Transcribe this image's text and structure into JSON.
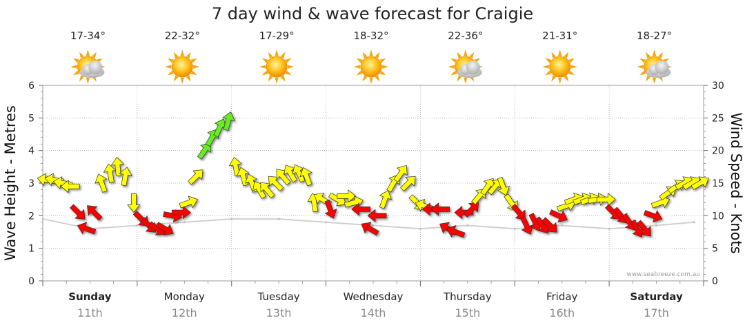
{
  "chart_data": {
    "type": "line",
    "title": "7 day wind & wave forecast for Craigie",
    "ylabel_left": "Wave Height - Metres",
    "ylabel_right": "Wind Speed - Knots",
    "ylim_left": [
      0,
      6
    ],
    "ylim_right": [
      0,
      30
    ],
    "yticks_left": [
      "0",
      "1",
      "2",
      "3",
      "4",
      "5",
      "6"
    ],
    "yticks_right": [
      "0",
      "5",
      "10",
      "15",
      "20",
      "25",
      "30"
    ],
    "grid": true,
    "credit": "www.seabreeze.com.au",
    "days": [
      {
        "name": "Sunday",
        "date": "11th",
        "temp": "17-34°",
        "weather": "partly-cloudy-icon",
        "bold": true
      },
      {
        "name": "Monday",
        "date": "12th",
        "temp": "22-32°",
        "weather": "sunny-icon",
        "bold": false
      },
      {
        "name": "Tuesday",
        "date": "13th",
        "temp": "17-29°",
        "weather": "sunny-icon",
        "bold": false
      },
      {
        "name": "Wednesday",
        "date": "14th",
        "temp": "18-32°",
        "weather": "sunny-icon",
        "bold": false
      },
      {
        "name": "Thursday",
        "date": "15th",
        "temp": "22-36°",
        "weather": "partly-cloudy-icon",
        "bold": false
      },
      {
        "name": "Friday",
        "date": "16th",
        "temp": "21-31°",
        "weather": "sunny-icon",
        "bold": false
      },
      {
        "name": "Saturday",
        "date": "17th",
        "temp": "18-27°",
        "weather": "partly-cloudy-icon",
        "bold": true
      }
    ],
    "colors": {
      "light": "#ffff00",
      "moderate": "#66ee22",
      "strong": "#ff0000",
      "outline": "#333333"
    },
    "series": [
      {
        "name": "Wind",
        "unit": "knots",
        "time_days": [
          0.0,
          0.08,
          0.17,
          0.25,
          0.33,
          0.42,
          0.5,
          0.58,
          0.67,
          0.75,
          0.83,
          0.92,
          1.0,
          1.08,
          1.17,
          1.25,
          1.33,
          1.42,
          1.5,
          1.58,
          1.67,
          1.75,
          1.83,
          1.92,
          2.0,
          2.08,
          2.17,
          2.25,
          2.33,
          2.42,
          2.5,
          2.58,
          2.67,
          2.75,
          2.83,
          2.92,
          3.0,
          3.08,
          3.17,
          3.25,
          3.33,
          3.42,
          3.5,
          3.58,
          3.67,
          3.75,
          3.83,
          3.92,
          4.0,
          4.08,
          4.17,
          4.25,
          4.33,
          4.42,
          4.5,
          4.58,
          4.67,
          4.75,
          4.83,
          4.92,
          5.0,
          5.08,
          5.17,
          5.25,
          5.33,
          5.42,
          5.5,
          5.58,
          5.67,
          5.75,
          5.83,
          5.92,
          6.0,
          6.08,
          6.17,
          6.25,
          6.33,
          6.42,
          6.5,
          6.58,
          6.67,
          6.75,
          6.83,
          6.92
        ],
        "speed_knots": [
          15.5,
          15.5,
          15,
          14.5,
          10.5,
          8,
          10.5,
          15,
          16.5,
          17.5,
          16,
          12,
          9.5,
          8.5,
          8,
          8,
          10,
          10.5,
          12,
          16,
          20,
          22,
          23.5,
          24.5,
          17.5,
          16,
          15,
          14,
          14,
          15,
          16,
          16.5,
          16.5,
          16,
          12,
          12.5,
          11,
          12.5,
          13,
          12,
          11,
          8,
          10,
          12.5,
          15,
          16.5,
          15,
          12,
          11.5,
          11,
          11,
          8,
          7.5,
          10.5,
          11,
          13,
          14.5,
          14.5,
          14.5,
          12,
          10.5,
          8.5,
          9,
          8.5,
          8.5,
          10,
          11.5,
          12.5,
          12.5,
          12.5,
          12.5,
          12.5,
          10.5,
          10,
          9,
          8,
          8,
          10,
          12,
          13.5,
          14.5,
          15,
          15,
          15
        ],
        "direction_deg": [
          280,
          280,
          280,
          270,
          135,
          290,
          315,
          340,
          350,
          355,
          10,
          180,
          135,
          135,
          125,
          120,
          100,
          90,
          70,
          45,
          35,
          30,
          25,
          15,
          350,
          345,
          340,
          330,
          320,
          315,
          320,
          330,
          335,
          340,
          350,
          300,
          160,
          120,
          90,
          75,
          270,
          300,
          270,
          20,
          30,
          35,
          45,
          135,
          290,
          270,
          270,
          300,
          290,
          270,
          45,
          40,
          35,
          40,
          160,
          145,
          140,
          155,
          155,
          145,
          135,
          115,
          70,
          70,
          70,
          70,
          80,
          90,
          135,
          140,
          145,
          150,
          140,
          110,
          70,
          55,
          55,
          60,
          60,
          60
        ]
      },
      {
        "name": "Wave Height",
        "unit": "metres",
        "time_days": [
          0.0,
          0.5,
          1.0,
          1.5,
          2.0,
          2.5,
          3.0,
          3.5,
          4.0,
          4.5,
          5.0,
          5.5,
          6.0,
          6.5,
          6.9
        ],
        "height_m": [
          1.9,
          1.6,
          1.7,
          1.8,
          1.9,
          1.9,
          1.8,
          1.7,
          1.6,
          1.7,
          1.6,
          1.7,
          1.6,
          1.7,
          1.8
        ]
      }
    ]
  }
}
